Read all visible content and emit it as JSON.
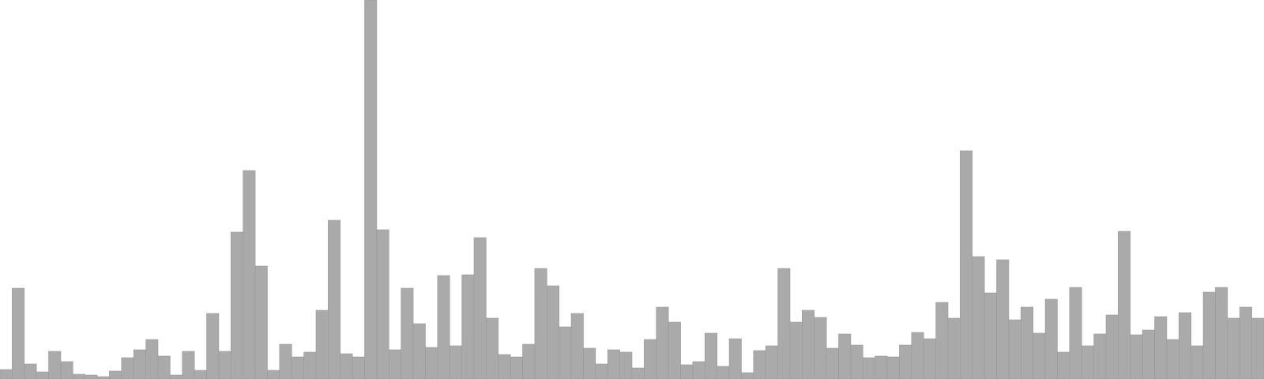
{
  "chart_data": {
    "type": "bar",
    "title": "",
    "xlabel": "",
    "ylabel": "",
    "ylim": [
      0,
      480
    ],
    "grid": false,
    "bar_color": "#aaaaaa",
    "edge_color": "#999999",
    "values": [
      12,
      115,
      19,
      9,
      35,
      22,
      6,
      5,
      3,
      10,
      27,
      37,
      50,
      29,
      5,
      35,
      11,
      83,
      35,
      186,
      264,
      143,
      11,
      44,
      28,
      34,
      87,
      201,
      32,
      28,
      480,
      189,
      37,
      115,
      70,
      40,
      131,
      42,
      132,
      179,
      77,
      31,
      28,
      44,
      140,
      118,
      66,
      83,
      39,
      19,
      37,
      34,
      14,
      50,
      91,
      72,
      18,
      22,
      58,
      16,
      51,
      8,
      36,
      42,
      140,
      72,
      87,
      78,
      39,
      57,
      43,
      27,
      29,
      28,
      43,
      59,
      51,
      97,
      77,
      289,
      155,
      109,
      151,
      75,
      91,
      58,
      101,
      34,
      116,
      42,
      57,
      81,
      187,
      56,
      62,
      79,
      50,
      84,
      42,
      110,
      116,
      77,
      91,
      77
    ]
  }
}
